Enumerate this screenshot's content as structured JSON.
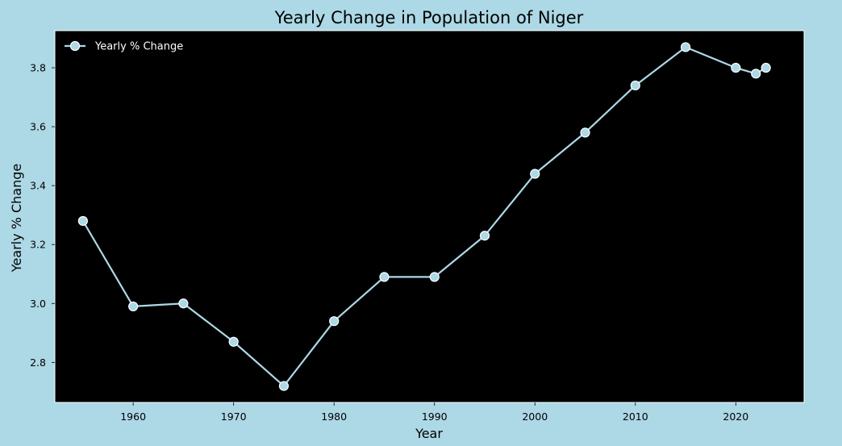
{
  "chart_data": {
    "type": "line",
    "title": "Yearly Change in Population of Niger",
    "xlabel": "Year",
    "ylabel": "Yearly % Change",
    "xlim": [
      1952.2,
      2026.8
    ],
    "ylim": [
      2.664,
      3.926
    ],
    "x_ticks": [
      1960,
      1970,
      1980,
      1990,
      2000,
      2010,
      2020
    ],
    "y_ticks": [
      2.8,
      3.0,
      3.2,
      3.4,
      3.6,
      3.8
    ],
    "grid": false,
    "legend_position": "top-left",
    "series": [
      {
        "name": "Yearly % Change",
        "color": "#add8e6",
        "x": [
          1955,
          1960,
          1965,
          1970,
          1975,
          1980,
          1985,
          1990,
          1995,
          2000,
          2005,
          2010,
          2015,
          2020,
          2022,
          2023
        ],
        "y": [
          3.28,
          2.99,
          3.0,
          2.87,
          2.72,
          2.94,
          3.09,
          3.09,
          3.23,
          3.44,
          3.58,
          3.74,
          3.87,
          3.8,
          3.78,
          3.8
        ]
      }
    ],
    "colors": {
      "figure_background": "#add8e6",
      "plot_background": "#000000",
      "plot_border": "#ffffff",
      "text": "#000000",
      "legend_text": "#ffffff"
    }
  }
}
